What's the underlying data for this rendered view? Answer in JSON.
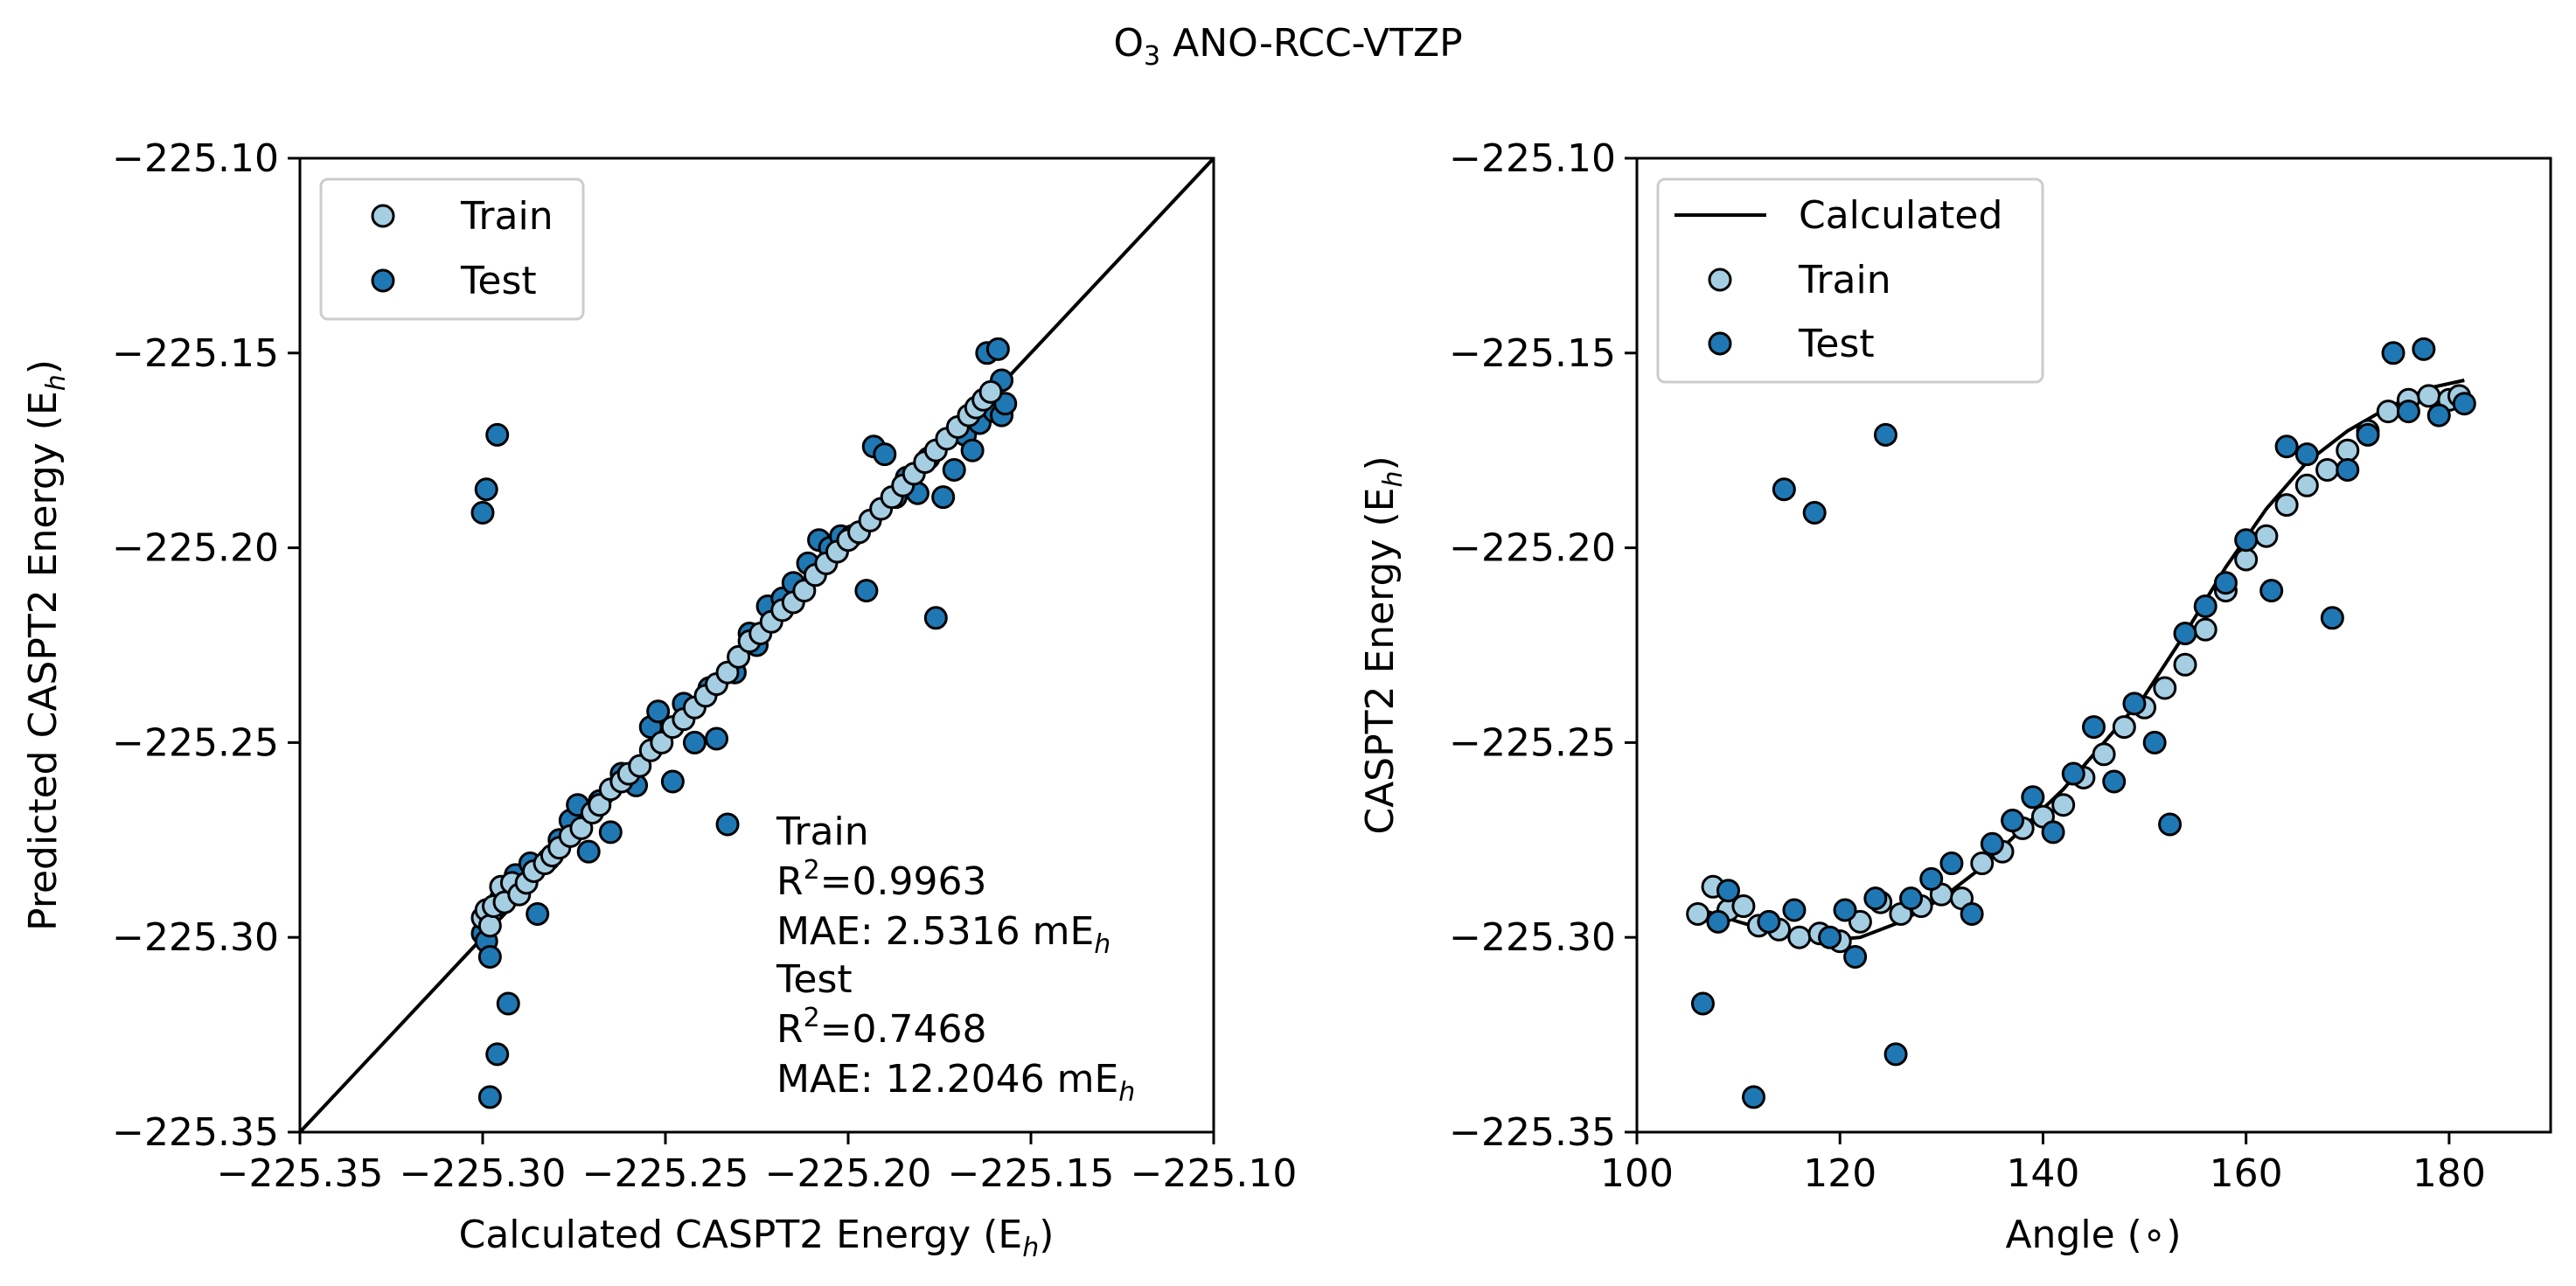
{
  "figure": {
    "title_main": "O",
    "title_sub": "3",
    "title_rest": " ANO-RCC-VTZP"
  },
  "colors": {
    "train": "#a6cee3",
    "test": "#1f78b4",
    "edge": "#000000",
    "line": "#000000"
  },
  "left_panel": {
    "xlabel_main": "Calculated CASPT2 Energy (E",
    "xlabel_sub": "h",
    "xlabel_end": ")",
    "ylabel_main": "Predicted CASPT2 Energy (E",
    "ylabel_sub": "h",
    "ylabel_end": ")",
    "legend": {
      "train": "Train",
      "test": "Test"
    },
    "stats": {
      "train_header": "Train",
      "train_r2_prefix": "R",
      "train_r2_sup": "2",
      "train_r2_value": "=0.9963",
      "train_mae_prefix": "MAE: 2.5316 mE",
      "train_mae_sub": "h",
      "test_header": "Test",
      "test_r2_prefix": "R",
      "test_r2_sup": "2",
      "test_r2_value": "=0.7468",
      "test_mae_prefix": "MAE: 12.2046 mE",
      "test_mae_sub": "h"
    }
  },
  "right_panel": {
    "xlabel": "Angle (∘)",
    "ylabel_main": "CASPT2 Energy (E",
    "ylabel_sub": "h",
    "ylabel_end": ")",
    "legend": {
      "calculated": "Calculated",
      "train": "Train",
      "test": "Test"
    }
  },
  "chart_data": [
    {
      "type": "scatter",
      "panel": "left",
      "xlim": [
        -225.35,
        -225.1
      ],
      "ylim": [
        -225.35,
        -225.1
      ],
      "xticks": [
        -225.35,
        -225.3,
        -225.25,
        -225.2,
        -225.15,
        -225.1
      ],
      "yticks": [
        -225.35,
        -225.3,
        -225.25,
        -225.2,
        -225.15,
        -225.1
      ],
      "xtick_labels": [
        "−225.35",
        "−225.30",
        "−225.25",
        "−225.20",
        "−225.15",
        "−225.10"
      ],
      "ytick_labels": [
        "−225.35",
        "−225.30",
        "−225.25",
        "−225.20",
        "−225.15",
        "−225.10"
      ],
      "reference_line": [
        [
          -225.35,
          -225.35
        ],
        [
          -225.1,
          -225.1
        ]
      ],
      "legend_position": "upper-left",
      "series": [
        {
          "name": "Train",
          "points": [
            [
              -225.3,
              -225.295
            ],
            [
              -225.299,
              -225.293
            ],
            [
              -225.298,
              -225.297
            ],
            [
              -225.297,
              -225.292
            ],
            [
              -225.295,
              -225.287
            ],
            [
              -225.294,
              -225.291
            ],
            [
              -225.292,
              -225.286
            ],
            [
              -225.29,
              -225.289
            ],
            [
              -225.288,
              -225.286
            ],
            [
              -225.286,
              -225.283
            ],
            [
              -225.283,
              -225.281
            ],
            [
              -225.281,
              -225.279
            ],
            [
              -225.279,
              -225.277
            ],
            [
              -225.276,
              -225.274
            ],
            [
              -225.273,
              -225.272
            ],
            [
              -225.27,
              -225.268
            ],
            [
              -225.268,
              -225.266
            ],
            [
              -225.265,
              -225.262
            ],
            [
              -225.262,
              -225.26
            ],
            [
              -225.26,
              -225.258
            ],
            [
              -225.257,
              -225.256
            ],
            [
              -225.254,
              -225.252
            ],
            [
              -225.251,
              -225.25
            ],
            [
              -225.248,
              -225.246
            ],
            [
              -225.245,
              -225.244
            ],
            [
              -225.242,
              -225.241
            ],
            [
              -225.239,
              -225.238
            ],
            [
              -225.236,
              -225.235
            ],
            [
              -225.233,
              -225.232
            ],
            [
              -225.23,
              -225.228
            ],
            [
              -225.227,
              -225.224
            ],
            [
              -225.224,
              -225.222
            ],
            [
              -225.221,
              -225.219
            ],
            [
              -225.218,
              -225.216
            ],
            [
              -225.215,
              -225.214
            ],
            [
              -225.212,
              -225.211
            ],
            [
              -225.209,
              -225.207
            ],
            [
              -225.206,
              -225.204
            ],
            [
              -225.203,
              -225.201
            ],
            [
              -225.2,
              -225.198
            ],
            [
              -225.197,
              -225.196
            ],
            [
              -225.194,
              -225.193
            ],
            [
              -225.191,
              -225.19
            ],
            [
              -225.188,
              -225.187
            ],
            [
              -225.185,
              -225.184
            ],
            [
              -225.182,
              -225.181
            ],
            [
              -225.179,
              -225.178
            ],
            [
              -225.176,
              -225.175
            ],
            [
              -225.173,
              -225.172
            ],
            [
              -225.17,
              -225.169
            ],
            [
              -225.167,
              -225.166
            ],
            [
              -225.165,
              -225.164
            ],
            [
              -225.163,
              -225.162
            ],
            [
              -225.161,
              -225.16
            ]
          ]
        },
        {
          "name": "Test",
          "points": [
            [
              -225.3,
              -225.299
            ],
            [
              -225.299,
              -225.301
            ],
            [
              -225.298,
              -225.305
            ],
            [
              -225.3,
              -225.191
            ],
            [
              -225.299,
              -225.185
            ],
            [
              -225.296,
              -225.171
            ],
            [
              -225.296,
              -225.33
            ],
            [
              -225.298,
              -225.341
            ],
            [
              -225.293,
              -225.317
            ],
            [
              -225.295,
              -225.29
            ],
            [
              -225.291,
              -225.284
            ],
            [
              -225.287,
              -225.281
            ],
            [
              -225.285,
              -225.294
            ],
            [
              -225.282,
              -225.28
            ],
            [
              -225.279,
              -225.275
            ],
            [
              -225.276,
              -225.27
            ],
            [
              -225.274,
              -225.266
            ],
            [
              -225.271,
              -225.278
            ],
            [
              -225.268,
              -225.265
            ],
            [
              -225.265,
              -225.273
            ],
            [
              -225.262,
              -225.258
            ],
            [
              -225.258,
              -225.261
            ],
            [
              -225.254,
              -225.246
            ],
            [
              -225.252,
              -225.242
            ],
            [
              -225.248,
              -225.26
            ],
            [
              -225.245,
              -225.24
            ],
            [
              -225.242,
              -225.25
            ],
            [
              -225.238,
              -225.236
            ],
            [
              -225.236,
              -225.249
            ],
            [
              -225.233,
              -225.271
            ],
            [
              -225.231,
              -225.232
            ],
            [
              -225.227,
              -225.222
            ],
            [
              -225.225,
              -225.225
            ],
            [
              -225.222,
              -225.215
            ],
            [
              -225.218,
              -225.213
            ],
            [
              -225.215,
              -225.209
            ],
            [
              -225.211,
              -225.204
            ],
            [
              -225.208,
              -225.198
            ],
            [
              -225.205,
              -225.2
            ],
            [
              -225.202,
              -225.197
            ],
            [
              -225.199,
              -225.197
            ],
            [
              -225.195,
              -225.211
            ],
            [
              -225.193,
              -225.174
            ],
            [
              -225.19,
              -225.176
            ],
            [
              -225.187,
              -225.187
            ],
            [
              -225.184,
              -225.182
            ],
            [
              -225.181,
              -225.186
            ],
            [
              -225.178,
              -225.177
            ],
            [
              -225.176,
              -225.218
            ],
            [
              -225.174,
              -225.187
            ],
            [
              -225.171,
              -225.18
            ],
            [
              -225.168,
              -225.171
            ],
            [
              -225.166,
              -225.175
            ],
            [
              -225.164,
              -225.168
            ],
            [
              -225.162,
              -225.15
            ],
            [
              -225.16,
              -225.165
            ],
            [
              -225.159,
              -225.149
            ],
            [
              -225.158,
              -225.166
            ],
            [
              -225.157,
              -225.163
            ],
            [
              -225.158,
              -225.157
            ]
          ]
        }
      ]
    },
    {
      "type": "scatter",
      "panel": "right",
      "xlim": [
        100,
        190
      ],
      "ylim": [
        -225.35,
        -225.1
      ],
      "xticks": [
        100,
        120,
        140,
        160,
        180
      ],
      "xtick_labels": [
        "100",
        "120",
        "140",
        "160",
        "180"
      ],
      "yticks": [
        -225.35,
        -225.3,
        -225.25,
        -225.2,
        -225.15,
        -225.1
      ],
      "ytick_labels": [
        "−225.35",
        "−225.30",
        "−225.25",
        "−225.20",
        "−225.15",
        "−225.10"
      ],
      "legend_position": "upper-left",
      "series": [
        {
          "name": "Calculated",
          "kind": "line",
          "points": [
            [
              106.5,
              -225.293
            ],
            [
              110,
              -225.296
            ],
            [
              114,
              -225.299
            ],
            [
              118,
              -225.301
            ],
            [
              122,
              -225.3
            ],
            [
              126,
              -225.296
            ],
            [
              130,
              -225.29
            ],
            [
              134,
              -225.282
            ],
            [
              138,
              -225.272
            ],
            [
              142,
              -225.262
            ],
            [
              146,
              -225.25
            ],
            [
              150,
              -225.238
            ],
            [
              154,
              -225.222
            ],
            [
              158,
              -225.205
            ],
            [
              162,
              -225.19
            ],
            [
              166,
              -225.178
            ],
            [
              170,
              -225.17
            ],
            [
              174,
              -225.164
            ],
            [
              178,
              -225.159
            ],
            [
              181.5,
              -225.157
            ]
          ]
        },
        {
          "name": "Train",
          "points": [
            [
              106,
              -225.294
            ],
            [
              107.5,
              -225.287
            ],
            [
              109,
              -225.293
            ],
            [
              110.5,
              -225.292
            ],
            [
              112,
              -225.297
            ],
            [
              114,
              -225.298
            ],
            [
              116,
              -225.3
            ],
            [
              118,
              -225.299
            ],
            [
              120,
              -225.301
            ],
            [
              122,
              -225.296
            ],
            [
              124,
              -225.291
            ],
            [
              126,
              -225.294
            ],
            [
              128,
              -225.292
            ],
            [
              130,
              -225.289
            ],
            [
              132,
              -225.29
            ],
            [
              134,
              -225.281
            ],
            [
              136,
              -225.278
            ],
            [
              138,
              -225.272
            ],
            [
              140,
              -225.269
            ],
            [
              142,
              -225.266
            ],
            [
              144,
              -225.259
            ],
            [
              146,
              -225.253
            ],
            [
              148,
              -225.246
            ],
            [
              150,
              -225.241
            ],
            [
              152,
              -225.236
            ],
            [
              154,
              -225.23
            ],
            [
              156,
              -225.221
            ],
            [
              158,
              -225.211
            ],
            [
              160,
              -225.203
            ],
            [
              162,
              -225.197
            ],
            [
              164,
              -225.189
            ],
            [
              166,
              -225.184
            ],
            [
              168,
              -225.18
            ],
            [
              170,
              -225.175
            ],
            [
              172,
              -225.17
            ],
            [
              174,
              -225.165
            ],
            [
              176,
              -225.162
            ],
            [
              178,
              -225.161
            ],
            [
              180,
              -225.162
            ],
            [
              181,
              -225.161
            ]
          ]
        },
        {
          "name": "Test",
          "points": [
            [
              106.5,
              -225.317
            ],
            [
              108,
              -225.296
            ],
            [
              109,
              -225.288
            ],
            [
              111.5,
              -225.341
            ],
            [
              113,
              -225.296
            ],
            [
              114.5,
              -225.185
            ],
            [
              115.5,
              -225.293
            ],
            [
              117.5,
              -225.191
            ],
            [
              119,
              -225.3
            ],
            [
              120.5,
              -225.293
            ],
            [
              121.5,
              -225.305
            ],
            [
              123.5,
              -225.29
            ],
            [
              124.5,
              -225.171
            ],
            [
              125.5,
              -225.33
            ],
            [
              127,
              -225.29
            ],
            [
              129,
              -225.285
            ],
            [
              131,
              -225.281
            ],
            [
              133,
              -225.294
            ],
            [
              135,
              -225.276
            ],
            [
              137,
              -225.27
            ],
            [
              139,
              -225.264
            ],
            [
              141,
              -225.273
            ],
            [
              143,
              -225.258
            ],
            [
              145,
              -225.246
            ],
            [
              147,
              -225.26
            ],
            [
              149,
              -225.24
            ],
            [
              151,
              -225.25
            ],
            [
              152.5,
              -225.271
            ],
            [
              154,
              -225.222
            ],
            [
              156,
              -225.215
            ],
            [
              158,
              -225.209
            ],
            [
              160,
              -225.198
            ],
            [
              162.5,
              -225.211
            ],
            [
              164,
              -225.174
            ],
            [
              166,
              -225.176
            ],
            [
              168.5,
              -225.218
            ],
            [
              170,
              -225.18
            ],
            [
              172,
              -225.171
            ],
            [
              174.5,
              -225.15
            ],
            [
              176,
              -225.165
            ],
            [
              177.5,
              -225.149
            ],
            [
              179,
              -225.166
            ],
            [
              181.5,
              -225.163
            ]
          ]
        }
      ]
    }
  ]
}
